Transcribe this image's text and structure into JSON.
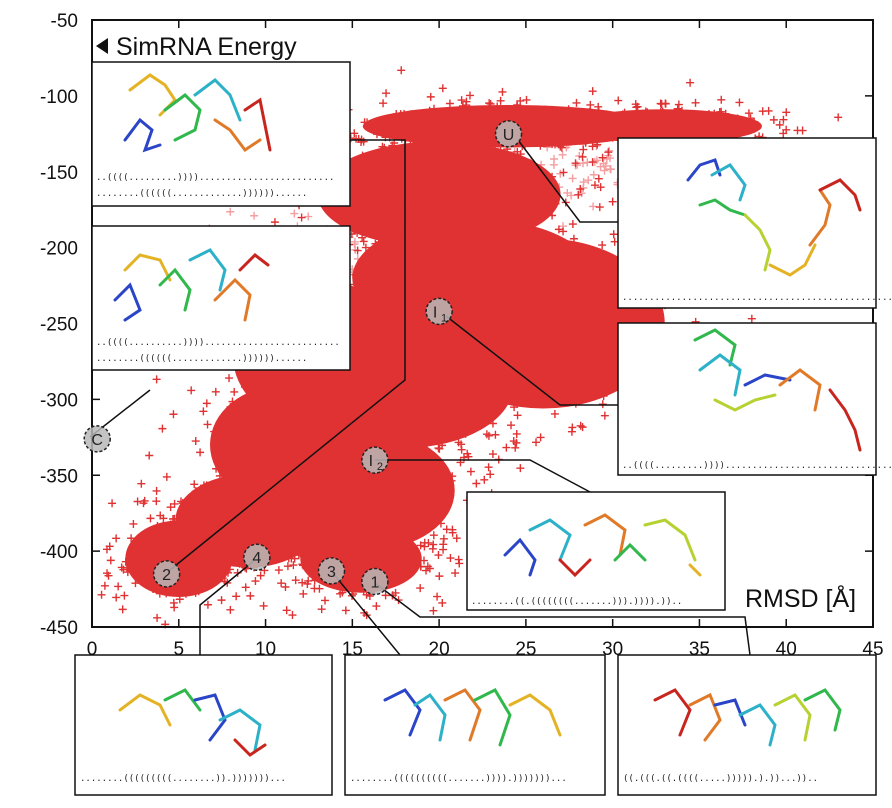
{
  "chart_data": {
    "type": "scatter",
    "xlabel": "RMSD [Å]",
    "ylabel": "SimRNA Energy",
    "xlim": [
      0,
      45
    ],
    "ylim": [
      -450,
      -50
    ],
    "xticks": [
      0,
      5,
      10,
      15,
      20,
      25,
      30,
      35,
      40,
      45
    ],
    "yticks": [
      -50,
      -100,
      -150,
      -200,
      -250,
      -300,
      -350,
      -400,
      -450
    ],
    "marker": "+",
    "colors": {
      "dense": "#e03232",
      "sparse": "#f49ea0"
    },
    "states": [
      {
        "label": "U",
        "sub": "",
        "x": 24.0,
        "y": -125
      },
      {
        "label": "I",
        "sub": "1",
        "x": 20.0,
        "y": -242
      },
      {
        "label": "I",
        "sub": "2",
        "x": 16.3,
        "y": -340
      },
      {
        "label": "C",
        "sub": "",
        "x": 0.3,
        "y": -326
      },
      {
        "label": "2",
        "sub": "",
        "x": 4.3,
        "y": -415
      },
      {
        "label": "4",
        "sub": "",
        "x": 9.5,
        "y": -404
      },
      {
        "label": "3",
        "sub": "",
        "x": 13.8,
        "y": -413
      },
      {
        "label": "1",
        "sub": "",
        "x": 16.3,
        "y": -420
      }
    ],
    "insets": [
      {
        "id": "top-left",
        "dots": [
          "..((((.........)))).........................",
          "........((((((.............))))))......"
        ]
      },
      {
        "id": "mid-left",
        "dots": [
          "..((((..........)))).........................",
          "........((((((.............))))))......"
        ]
      },
      {
        "id": "upper-right",
        "dots": [
          "....................................................................."
        ]
      },
      {
        "id": "mid-right",
        "dots": [
          "..((((.........))))................................"
        ]
      },
      {
        "id": "center-right",
        "dots": [
          "........((.((((((((.......))).)))).)).."
        ]
      },
      {
        "id": "bottom-1",
        "dots": [
          "........(((((((((........)).)))))))..."
        ]
      },
      {
        "id": "bottom-2",
        "dots": [
          "........((((((((((.......)))).)))))))..."
        ]
      },
      {
        "id": "bottom-3",
        "dots": [
          "((.(((.((.((((.....))))).).))...)).."
        ]
      }
    ]
  }
}
